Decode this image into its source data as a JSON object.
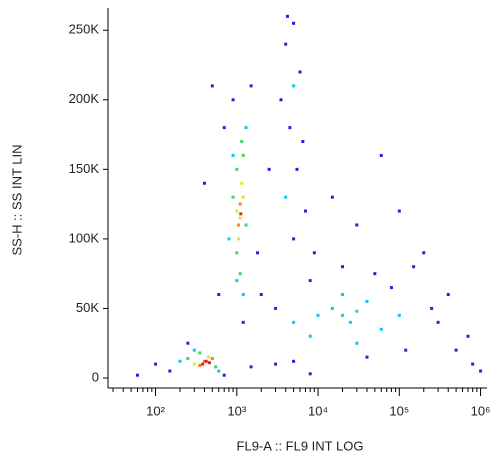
{
  "chart_data": {
    "type": "scatter",
    "x_label": "FL9-A :: FL9 INT LOG",
    "y_label": "SS-H :: SS INT LIN",
    "xscale": "log",
    "xlim": [
      26,
      1200000
    ],
    "xticks": [
      {
        "value": 100,
        "label": "10²"
      },
      {
        "value": 1000,
        "label": "10³"
      },
      {
        "value": 10000,
        "label": "10⁴"
      },
      {
        "value": 100000,
        "label": "10⁵"
      },
      {
        "value": 1000000,
        "label": "10⁶"
      }
    ],
    "xminorticks": [
      30,
      40,
      50,
      60,
      70,
      80,
      90,
      200,
      300,
      400,
      500,
      600,
      700,
      800,
      900,
      2000,
      3000,
      4000,
      5000,
      6000,
      7000,
      8000,
      9000,
      20000,
      30000,
      40000,
      50000,
      60000,
      70000,
      80000,
      90000,
      200000,
      300000,
      400000,
      500000,
      600000,
      700000,
      800000,
      900000
    ],
    "ylim": [
      -7200,
      266000
    ],
    "yticks": [
      0,
      {
        "value": 50000,
        "label": "50K"
      },
      {
        "value": 100000,
        "label": "100K"
      },
      {
        "value": 150000,
        "label": "150K"
      },
      {
        "value": 200000,
        "label": "200K"
      },
      {
        "value": 250000,
        "label": "250K"
      }
    ],
    "series": [
      {
        "color": "#2222dd",
        "x": [
          150,
          250,
          700,
          1500,
          3000,
          5000,
          8000,
          600,
          700,
          900,
          1500,
          1800,
          2000,
          4000,
          5000,
          6000,
          4500,
          5500,
          7000,
          5000,
          9000,
          15000,
          30000,
          60000,
          100000,
          200000,
          300000,
          500000,
          800000,
          400000,
          150000,
          50000,
          20000,
          8000,
          3000,
          100,
          60,
          1000000,
          700000,
          1200,
          2500,
          3500,
          4200,
          6500,
          250000,
          120000,
          40000,
          80000,
          500,
          400
        ],
        "y": [
          5000,
          25000,
          2000,
          8000,
          10000,
          12000,
          3000,
          60000,
          180000,
          200000,
          210000,
          90000,
          60000,
          240000,
          255000,
          220000,
          180000,
          150000,
          120000,
          100000,
          90000,
          130000,
          110000,
          160000,
          120000,
          90000,
          40000,
          20000,
          10000,
          60000,
          80000,
          75000,
          80000,
          70000,
          50000,
          10000,
          2000,
          5000,
          30000,
          40000,
          150000,
          200000,
          260000,
          170000,
          50000,
          20000,
          15000,
          65000,
          210000,
          140000
        ]
      },
      {
        "color": "#10c4f4",
        "x": [
          1000,
          1300,
          900,
          1200,
          800,
          15000,
          25000,
          40000,
          10000,
          60000,
          30000,
          20000,
          300,
          600,
          200,
          5000,
          8000,
          100000,
          5000,
          4000
        ],
        "y": [
          70000,
          180000,
          160000,
          60000,
          100000,
          50000,
          40000,
          55000,
          45000,
          35000,
          25000,
          60000,
          20000,
          5000,
          12000,
          40000,
          30000,
          45000,
          210000,
          130000
        ]
      },
      {
        "color": "#40d860",
        "x": [
          1000,
          1200,
          900,
          1300,
          1100,
          20000,
          30000,
          350,
          550,
          250,
          1000,
          1150
        ],
        "y": [
          90000,
          160000,
          130000,
          110000,
          75000,
          45000,
          48000,
          18000,
          8000,
          14000,
          150000,
          170000
        ]
      },
      {
        "color": "#ece030",
        "x": [
          1050,
          1200,
          1000,
          1150,
          450,
          300,
          1100
        ],
        "y": [
          100000,
          130000,
          120000,
          140000,
          15000,
          10000,
          115000
        ]
      },
      {
        "color": "#ff8020",
        "x": [
          1100,
          1050,
          400,
          500,
          350
        ],
        "y": [
          125000,
          110000,
          12000,
          14000,
          9000
        ]
      },
      {
        "color": "#e02020",
        "x": [
          420,
          380,
          460,
          1120
        ],
        "y": [
          12000,
          10000,
          11000,
          118000
        ]
      }
    ]
  }
}
